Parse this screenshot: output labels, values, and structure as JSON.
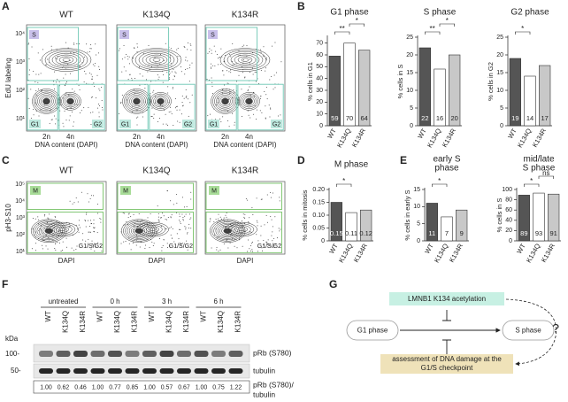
{
  "panels": [
    "A",
    "B",
    "C",
    "D",
    "E",
    "F",
    "G"
  ],
  "flow_a": {
    "samples": [
      "WT",
      "K134Q",
      "K134R"
    ],
    "y_label": "EdU labeling",
    "x_label": "DNA content (DAPI)",
    "x_ticks": [
      "2n",
      "4n"
    ],
    "y_ticks": [
      "10⁴",
      "10³",
      "10²",
      "10¹"
    ],
    "gates": [
      "S",
      "G1",
      "G2"
    ]
  },
  "flow_c": {
    "samples": [
      "WT",
      "K134Q",
      "K134R"
    ],
    "y_label": "pH3-S10",
    "x_label": "DAPI",
    "y_ticks": [
      "10⁵",
      "10⁴",
      "10³",
      "10²",
      "10¹"
    ],
    "gates": [
      "M",
      "G1/S/G2"
    ]
  },
  "chart_data": [
    {
      "type": "bar",
      "title_lines": [
        "G1 phase"
      ],
      "y_label": "% cells in G1",
      "categories": [
        "WT",
        "K134Q",
        "K134R"
      ],
      "values": [
        59,
        70,
        64
      ],
      "colors": [
        "#555555",
        "#ffffff",
        "#c8c8c8"
      ],
      "ylim": [
        0,
        75
      ],
      "yticks": [
        0,
        10,
        20,
        30,
        40,
        50,
        60,
        70
      ],
      "significance": [
        {
          "from": "WT",
          "to": "K134Q",
          "label": "**"
        },
        {
          "from": "K134Q",
          "to": "K134R",
          "label": "*"
        }
      ]
    },
    {
      "type": "bar",
      "title_lines": [
        "S phase"
      ],
      "y_label": "% cells in S",
      "categories": [
        "WT",
        "K134Q",
        "K134R"
      ],
      "values": [
        22,
        16,
        20
      ],
      "colors": [
        "#555555",
        "#ffffff",
        "#c8c8c8"
      ],
      "ylim": [
        0,
        25
      ],
      "yticks": [
        0,
        5,
        10,
        15,
        20,
        25
      ],
      "significance": [
        {
          "from": "WT",
          "to": "K134Q",
          "label": "**"
        },
        {
          "from": "K134Q",
          "to": "K134R",
          "label": "*"
        }
      ]
    },
    {
      "type": "bar",
      "title_lines": [
        "G2 phase"
      ],
      "y_label": "% cells in G2",
      "categories": [
        "WT",
        "K134Q",
        "K134R"
      ],
      "values": [
        19,
        14,
        17
      ],
      "colors": [
        "#555555",
        "#ffffff",
        "#c8c8c8"
      ],
      "ylim": [
        0,
        25
      ],
      "yticks": [
        0,
        5,
        10,
        15,
        20,
        25
      ],
      "significance": [
        {
          "from": "WT",
          "to": "K134Q",
          "label": "*"
        }
      ]
    },
    {
      "type": "bar",
      "title_lines": [
        "M phase"
      ],
      "y_label": "% cells in mitosis",
      "categories": [
        "WT",
        "K134Q",
        "K134R"
      ],
      "values": [
        0.15,
        0.11,
        0.12
      ],
      "colors": [
        "#555555",
        "#ffffff",
        "#c8c8c8"
      ],
      "ylim": [
        0,
        0.2
      ],
      "yticks": [
        0,
        0.05,
        {
          "value": 0.1,
          "label": "0.10"
        },
        0.15,
        {
          "value": 0.2,
          "label": "0.20"
        }
      ],
      "significance": [
        {
          "from": "WT",
          "to": "K134Q",
          "label": "*"
        }
      ]
    },
    {
      "type": "bar",
      "title_lines": [
        "early S",
        "phase"
      ],
      "y_label": "% cells in early S",
      "categories": [
        "WT",
        "K134Q",
        "K134R"
      ],
      "values": [
        11,
        7,
        9
      ],
      "colors": [
        "#555555",
        "#ffffff",
        "#c8c8c8"
      ],
      "ylim": [
        0,
        15
      ],
      "yticks": [
        0,
        5,
        10,
        15
      ],
      "significance": [
        {
          "from": "WT",
          "to": "K134Q",
          "label": "*"
        }
      ]
    },
    {
      "type": "bar",
      "title_lines": [
        "mid/late",
        "S phase"
      ],
      "y_label": "% cells in S",
      "categories": [
        "WT",
        "K134Q",
        "K134R"
      ],
      "values": [
        89,
        93,
        91
      ],
      "colors": [
        "#555555",
        "#ffffff",
        "#c8c8c8"
      ],
      "ylim": [
        0,
        100
      ],
      "yticks": [
        0,
        20,
        40,
        60,
        80,
        100
      ],
      "significance": [
        {
          "from": "WT",
          "to": "K134Q",
          "label": "*"
        },
        {
          "from": "K134Q",
          "to": "K134R",
          "label": "ns"
        }
      ]
    }
  ],
  "blot": {
    "groups": [
      "untreated",
      "0 h",
      "3 h",
      "6 h"
    ],
    "lanes": [
      "WT",
      "K134Q",
      "K134R"
    ],
    "unit": "kDa",
    "markers": [
      "100-",
      "50-"
    ],
    "rows": [
      "pRb (S780)",
      "tubulin"
    ],
    "ratio_label": [
      "pRb (S780)/",
      "tubulin"
    ],
    "ratios": [
      "1.00",
      "0.62",
      "0.46",
      "1.00",
      "0.77",
      "0.85",
      "1.00",
      "0.57",
      "0.67",
      "1.00",
      "0.75",
      "1.22"
    ]
  },
  "diagram": {
    "regulator": "LMNB1 K134 acetylation",
    "from": "G1 phase",
    "to": "S phase",
    "process_lines": [
      "assessment of DNA damage at the",
      "G1/S checkpoint"
    ],
    "question": "?"
  }
}
